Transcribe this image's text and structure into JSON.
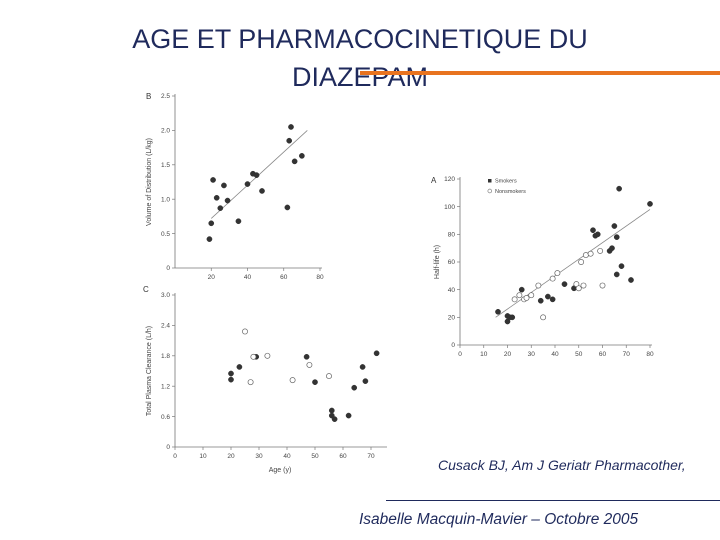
{
  "slide": {
    "title_line1": "AGE ET PHARMACOCINETIQUE DU",
    "title_line2": "DIAZEPAM",
    "citation": "Cusack BJ, Am J Geriatr Pharmacother,",
    "footer": "Isabelle Macquin-Mavier – Octobre 2005",
    "accent_color": "#e8731f",
    "text_color": "#1f2a5c"
  },
  "chart_data": [
    {
      "panel": "B",
      "type": "scatter",
      "ylabel": "Volume of Distribution (L/kg)",
      "xlabel": "",
      "xlim": [
        0,
        80
      ],
      "ylim": [
        0,
        2.5
      ],
      "xticks": [
        "20",
        "40",
        "60",
        "80"
      ],
      "yticks": [
        "0",
        "0.5",
        "1.0",
        "1.5",
        "2.0",
        "2.5"
      ],
      "series": [
        {
          "x": [
            19,
            20,
            21,
            23,
            25,
            27,
            29,
            35,
            40,
            43,
            45,
            48,
            62,
            63,
            64,
            66,
            70
          ],
          "y": [
            0.42,
            0.65,
            1.28,
            1.02,
            0.87,
            1.2,
            0.98,
            0.68,
            1.22,
            1.37,
            1.35,
            1.12,
            0.88,
            1.85,
            2.05,
            1.55,
            1.63
          ]
        }
      ],
      "trend": [
        [
          20,
          0.72
        ],
        [
          73,
          2.0
        ]
      ]
    },
    {
      "panel": "C",
      "type": "scatter",
      "ylabel": "Total Plasma Clearance (L/h)",
      "xlabel": "Age (y)",
      "xlim": [
        0,
        75
      ],
      "ylim": [
        0,
        3.0
      ],
      "xticks": [
        "0",
        "10",
        "20",
        "30",
        "40",
        "50",
        "60",
        "70"
      ],
      "yticks": [
        "0",
        "0.6",
        "1.2",
        "1.8",
        "2.4",
        "3.0"
      ],
      "series": [
        {
          "name": "filled",
          "marker": "filled",
          "x": [
            20,
            20,
            23,
            29,
            47,
            50,
            56,
            56,
            57,
            62,
            64,
            67,
            68,
            72
          ],
          "y": [
            1.45,
            1.33,
            1.58,
            1.78,
            1.78,
            1.28,
            0.72,
            0.62,
            0.55,
            0.62,
            1.17,
            1.58,
            1.3,
            1.85
          ]
        },
        {
          "name": "open",
          "marker": "open",
          "x": [
            25,
            27,
            28,
            33,
            42,
            48,
            55
          ],
          "y": [
            2.28,
            1.28,
            1.78,
            1.8,
            1.32,
            1.62,
            1.4
          ]
        }
      ]
    },
    {
      "panel": "A",
      "type": "scatter",
      "ylabel": "Half-life (h)",
      "xlabel": "",
      "xlim": [
        0,
        80
      ],
      "ylim": [
        0,
        120
      ],
      "xticks": [
        "0",
        "10",
        "20",
        "30",
        "40",
        "50",
        "60",
        "70",
        "80"
      ],
      "yticks": [
        "0",
        "20",
        "40",
        "60",
        "80",
        "100",
        "120"
      ],
      "legend": [
        "Smokers",
        "Nonsmokers"
      ],
      "series": [
        {
          "name": "Smokers",
          "marker": "filled",
          "x": [
            16,
            20,
            20,
            21,
            22,
            26,
            34,
            37,
            39,
            44,
            48,
            56,
            57,
            58,
            63,
            64,
            65,
            66,
            66,
            67,
            68,
            72,
            80
          ],
          "y": [
            24,
            21,
            17,
            20,
            20,
            40,
            32,
            35,
            33,
            44,
            41,
            83,
            79,
            80,
            68,
            70,
            86,
            78,
            51,
            113,
            57,
            47,
            102
          ]
        },
        {
          "name": "Nonsmokers",
          "marker": "open",
          "x": [
            23,
            25,
            27,
            28,
            30,
            33,
            35,
            39,
            41,
            49,
            50,
            51,
            52,
            53,
            55,
            59,
            60
          ],
          "y": [
            33,
            36,
            33,
            34,
            36,
            43,
            20,
            48,
            52,
            44,
            41,
            60,
            43,
            65,
            66,
            68,
            43
          ]
        }
      ],
      "trend": [
        [
          15,
          20
        ],
        [
          80,
          98
        ]
      ]
    }
  ]
}
